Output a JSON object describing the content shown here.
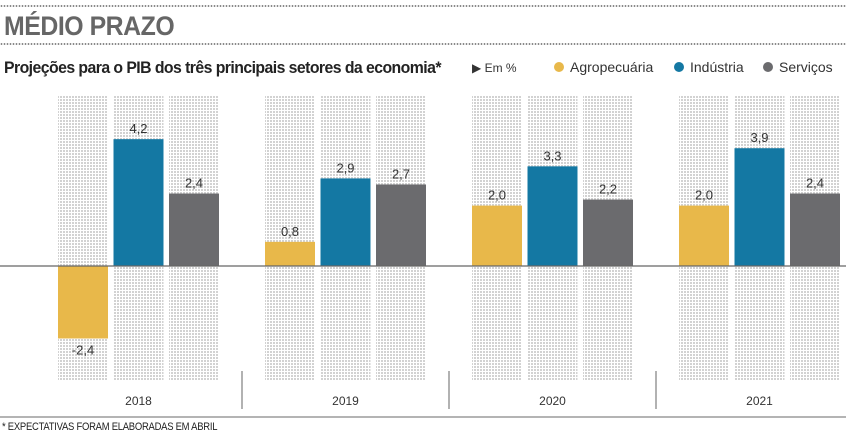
{
  "header": {
    "title": "MÉDIO PRAZO",
    "subtitle": "Projeções para o PIB dos três principais setores da economia*",
    "unit": "▶ Em %"
  },
  "footnote": "* EXPECTATIVAS FORAM ELABORADAS EM ABRIL",
  "colors": {
    "Agropecuária": "#e8b84a",
    "Indústria": "#1478a3",
    "Serviços": "#6b6b6e",
    "baseline": "#666666",
    "dot_pattern": "#c8c8c8"
  },
  "chart_data": {
    "type": "bar",
    "title": "Projeções para o PIB dos três principais setores da economia*",
    "ylabel": "Em %",
    "xlabel": "",
    "categories": [
      "2018",
      "2019",
      "2020",
      "2021"
    ],
    "series": [
      {
        "name": "Agropecuária",
        "values": [
          -2.4,
          0.8,
          2.0,
          2.0
        ],
        "labels": [
          "-2,4",
          "0,8",
          "2,0",
          "2,0"
        ]
      },
      {
        "name": "Indústria",
        "values": [
          4.2,
          2.9,
          3.3,
          3.9
        ],
        "labels": [
          "4,2",
          "2,9",
          "3,3",
          "3,9"
        ]
      },
      {
        "name": "Serviços",
        "values": [
          2.4,
          2.7,
          2.2,
          2.4
        ],
        "labels": [
          "2,4",
          "2,7",
          "2,2",
          "2,4"
        ]
      }
    ],
    "ylim": [
      -3.8,
      5.7
    ],
    "legend": "top-right",
    "grid": false
  }
}
